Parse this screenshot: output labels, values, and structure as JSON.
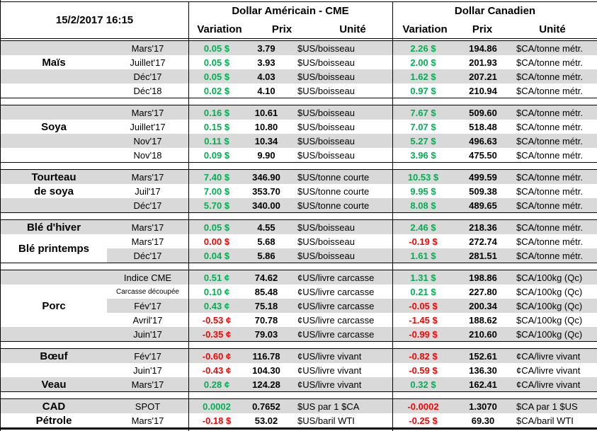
{
  "meta": {
    "timestamp": "15/2/2017 16:15"
  },
  "header": {
    "us_group": "Dollar Américain - CME",
    "ca_group": "Dollar Canadien",
    "subcolumns": [
      "Variation",
      "Prix",
      "Unité"
    ]
  },
  "colors": {
    "positive": "#00B050",
    "negative": "#FF0000",
    "stripe": "#D9D9D9",
    "border": "#000000"
  },
  "groups": [
    {
      "name": "mais",
      "labels": [
        {
          "text": "",
          "span": 1
        },
        {
          "text": "Maïs",
          "span": 1
        },
        {
          "text": "",
          "span": 1
        },
        {
          "text": "",
          "span": 1
        }
      ],
      "rows": [
        {
          "month": "Mars'17",
          "us_var": "0.05 $",
          "us_dir": "up",
          "us_prix": "3.79",
          "us_unit": "$US/boisseau",
          "ca_var": "2.26 $",
          "ca_dir": "up",
          "ca_prix": "194.86",
          "ca_unit": "$CA/tonne métr."
        },
        {
          "month": "Juillet'17",
          "us_var": "0.05 $",
          "us_dir": "up",
          "us_prix": "3.93",
          "us_unit": "$US/boisseau",
          "ca_var": "2.00 $",
          "ca_dir": "up",
          "ca_prix": "201.93",
          "ca_unit": "$CA/tonne métr."
        },
        {
          "month": "Déc'17",
          "us_var": "0.05 $",
          "us_dir": "up",
          "us_prix": "4.03",
          "us_unit": "$US/boisseau",
          "ca_var": "1.62 $",
          "ca_dir": "up",
          "ca_prix": "207.21",
          "ca_unit": "$CA/tonne métr."
        },
        {
          "month": "Déc'18",
          "us_var": "0.02 $",
          "us_dir": "up",
          "us_prix": "4.10",
          "us_unit": "$US/boisseau",
          "ca_var": "0.97 $",
          "ca_dir": "up",
          "ca_prix": "210.94",
          "ca_unit": "$CA/tonne métr."
        }
      ]
    },
    {
      "name": "soya",
      "labels": [
        {
          "text": "",
          "span": 1
        },
        {
          "text": "Soya",
          "span": 1
        },
        {
          "text": "",
          "span": 1
        },
        {
          "text": "",
          "span": 1
        }
      ],
      "rows": [
        {
          "month": "Mars'17",
          "us_var": "0.16 $",
          "us_dir": "up",
          "us_prix": "10.61",
          "us_unit": "$US/boisseau",
          "ca_var": "7.67 $",
          "ca_dir": "up",
          "ca_prix": "509.60",
          "ca_unit": "$CA/tonne métr."
        },
        {
          "month": "Juillet'17",
          "us_var": "0.15 $",
          "us_dir": "up",
          "us_prix": "10.80",
          "us_unit": "$US/boisseau",
          "ca_var": "7.07 $",
          "ca_dir": "up",
          "ca_prix": "518.48",
          "ca_unit": "$CA/tonne métr."
        },
        {
          "month": "Nov'17",
          "us_var": "0.11 $",
          "us_dir": "up",
          "us_prix": "10.34",
          "us_unit": "$US/boisseau",
          "ca_var": "5.27 $",
          "ca_dir": "up",
          "ca_prix": "496.63",
          "ca_unit": "$CA/tonne métr."
        },
        {
          "month": "Nov'18",
          "us_var": "0.09 $",
          "us_dir": "up",
          "us_prix": "9.90",
          "us_unit": "$US/boisseau",
          "ca_var": "3.96 $",
          "ca_dir": "up",
          "ca_prix": "475.50",
          "ca_unit": "$CA/tonne métr."
        }
      ]
    },
    {
      "name": "tourteau-de-soya",
      "labels": [
        {
          "text": "Tourteau",
          "span": 1
        },
        {
          "text": "de soya",
          "span": 1
        },
        {
          "text": "",
          "span": 1
        }
      ],
      "rows": [
        {
          "month": "Mars'17",
          "us_var": "7.40 $",
          "us_dir": "up",
          "us_prix": "346.90",
          "us_unit": "$US/tonne courte",
          "ca_var": "10.53 $",
          "ca_dir": "up",
          "ca_prix": "499.59",
          "ca_unit": "$CA/tonne métr."
        },
        {
          "month": "Juil'17",
          "us_var": "7.00 $",
          "us_dir": "up",
          "us_prix": "353.70",
          "us_unit": "$US/tonne courte",
          "ca_var": "9.95 $",
          "ca_dir": "up",
          "ca_prix": "509.38",
          "ca_unit": "$CA/tonne métr."
        },
        {
          "month": "Déc'17",
          "us_var": "5.70 $",
          "us_dir": "up",
          "us_prix": "340.00",
          "us_unit": "$US/tonne courte",
          "ca_var": "8.08 $",
          "ca_dir": "up",
          "ca_prix": "489.65",
          "ca_unit": "$CA/tonne métr."
        }
      ]
    },
    {
      "name": "ble",
      "labels": [
        {
          "text": "Blé d'hiver",
          "span": 1
        },
        {
          "text": "Blé printemps",
          "span": 2
        }
      ],
      "rows": [
        {
          "month": "Mars'17",
          "us_var": "0.05 $",
          "us_dir": "up",
          "us_prix": "4.55",
          "us_unit": "$US/boisseau",
          "ca_var": "2.46 $",
          "ca_dir": "up",
          "ca_prix": "218.36",
          "ca_unit": "$CA/tonne métr."
        },
        {
          "month": "Mars'17",
          "us_var": "0.00 $",
          "us_dir": "down",
          "us_prix": "5.68",
          "us_unit": "$US/boisseau",
          "ca_var": "-0.19 $",
          "ca_dir": "down",
          "ca_prix": "272.74",
          "ca_unit": "$CA/tonne métr."
        },
        {
          "month": "Déc'17",
          "us_var": "0.04 $",
          "us_dir": "up",
          "us_prix": "5.86",
          "us_unit": "$US/boisseau",
          "ca_var": "1.61 $",
          "ca_dir": "up",
          "ca_prix": "281.51",
          "ca_unit": "$CA/tonne métr."
        }
      ]
    },
    {
      "name": "porc",
      "labels": [
        {
          "text": "",
          "span": 1
        },
        {
          "text": "Porc",
          "span": 3
        },
        {
          "text": "",
          "span": 1
        }
      ],
      "rows": [
        {
          "month": "Indice CME",
          "us_var": "0.51 ¢",
          "us_dir": "up",
          "us_prix": "74.62",
          "us_unit": "¢US/livre carcasse",
          "ca_var": "1.31 $",
          "ca_dir": "up",
          "ca_prix": "198.86",
          "ca_unit": "$CA/100kg (Qc)"
        },
        {
          "month": "Carcasse découpée",
          "small": true,
          "us_var": "0.10 ¢",
          "us_dir": "up",
          "us_prix": "85.48",
          "us_unit": "¢US/livre carcasse",
          "ca_var": "0.21 $",
          "ca_dir": "up",
          "ca_prix": "227.80",
          "ca_unit": "$CA/100kg (Qc)"
        },
        {
          "month": "Fév'17",
          "us_var": "0.43 ¢",
          "us_dir": "up",
          "us_prix": "75.18",
          "us_unit": "¢US/livre carcasse",
          "ca_var": "-0.05 $",
          "ca_dir": "down",
          "ca_prix": "200.34",
          "ca_unit": "$CA/100kg (Qc)"
        },
        {
          "month": "Avril'17",
          "us_var": "-0.53 ¢",
          "us_dir": "down",
          "us_prix": "70.78",
          "us_unit": "¢US/livre carcasse",
          "ca_var": "-1.45 $",
          "ca_dir": "down",
          "ca_prix": "188.62",
          "ca_unit": "$CA/100kg (Qc)"
        },
        {
          "month": "Juin'17",
          "us_var": "-0.35 ¢",
          "us_dir": "down",
          "us_prix": "79.03",
          "us_unit": "¢US/livre carcasse",
          "ca_var": "-0.99 $",
          "ca_dir": "down",
          "ca_prix": "210.60",
          "ca_unit": "$CA/100kg (Qc)"
        }
      ]
    },
    {
      "name": "boeuf-veau",
      "labels": [
        {
          "text": "Bœuf",
          "span": 1
        },
        {
          "text": "",
          "span": 1
        },
        {
          "text": "Veau",
          "span": 1
        }
      ],
      "rows": [
        {
          "month": "Fév'17",
          "us_var": "-0.60 ¢",
          "us_dir": "down",
          "us_prix": "116.78",
          "us_unit": "¢US/livre vivant",
          "ca_var": "-0.82 $",
          "ca_dir": "down",
          "ca_prix": "152.61",
          "ca_unit": "¢CA/livre vivant"
        },
        {
          "month": "Juin'17",
          "us_var": "-0.43 ¢",
          "us_dir": "down",
          "us_prix": "104.30",
          "us_unit": "¢US/livre vivant",
          "ca_var": "-0.59 $",
          "ca_dir": "down",
          "ca_prix": "136.30",
          "ca_unit": "¢CA/livre vivant"
        },
        {
          "month": "Mars'17",
          "us_var": "0.28 ¢",
          "us_dir": "up",
          "us_prix": "124.28",
          "us_unit": "¢US/livre vivant",
          "ca_var": "0.32 $",
          "ca_dir": "up",
          "ca_prix": "162.41",
          "ca_unit": "¢CA/livre vivant"
        }
      ]
    },
    {
      "name": "cad-petrole",
      "labels": [
        {
          "text": "CAD",
          "span": 1
        },
        {
          "text": "Pétrole",
          "span": 1
        }
      ],
      "rows": [
        {
          "month": "SPOT",
          "us_var": "0.0002",
          "us_dir": "up",
          "us_prix": "0.7652",
          "us_unit": "$US par 1 $CA",
          "ca_var": "-0.0002",
          "ca_dir": "down",
          "ca_prix": "1.3070",
          "ca_unit": "$CA par 1 $US"
        },
        {
          "month": "Mars'17",
          "us_var": "-0.18 $",
          "us_dir": "down",
          "us_prix": "53.02",
          "us_unit": "$US/baril WTI",
          "ca_var": "-0.25 $",
          "ca_dir": "down",
          "ca_prix": "69.30",
          "ca_unit": "$CA/baril WTI"
        }
      ]
    }
  ]
}
